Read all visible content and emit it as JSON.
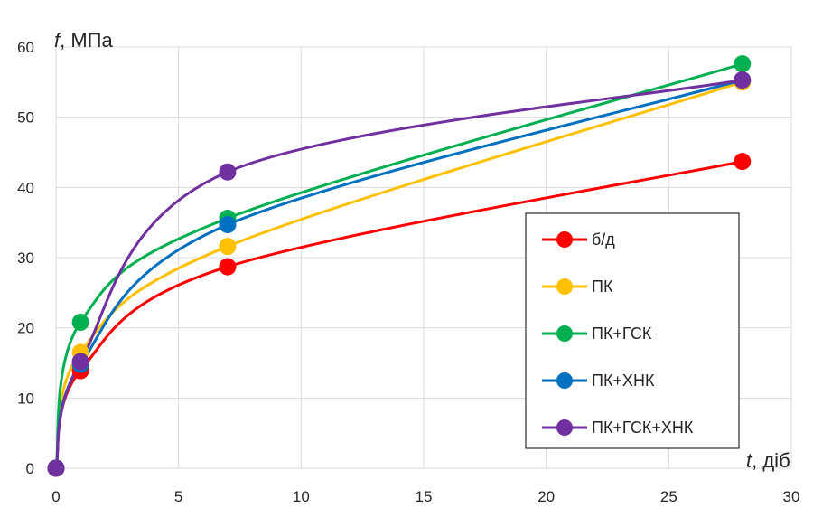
{
  "chart_data": {
    "type": "line",
    "x_axis_title": {
      "var": "t",
      "unit": ", діб"
    },
    "y_axis_title": {
      "var": "f",
      "unit": ", МПа"
    },
    "xlim": [
      0,
      30
    ],
    "ylim": [
      0,
      60
    ],
    "x_ticks": [
      0,
      5,
      10,
      15,
      20,
      25,
      30
    ],
    "y_ticks": [
      0,
      10,
      20,
      30,
      40,
      50,
      60
    ],
    "grid": true,
    "legend_position": "right",
    "series": [
      {
        "name": "б/д",
        "color": "#ff0000",
        "x": [
          0,
          1,
          7,
          28
        ],
        "y": [
          0,
          13.9,
          28.7,
          43.7
        ]
      },
      {
        "name": "ПК",
        "color": "#ffc000",
        "x": [
          0,
          1,
          7,
          28
        ],
        "y": [
          0,
          16.5,
          31.6,
          55.0
        ]
      },
      {
        "name": "ПК+ГСК",
        "color": "#00b050",
        "x": [
          0,
          1,
          7,
          28
        ],
        "y": [
          0,
          20.8,
          35.6,
          57.6
        ]
      },
      {
        "name": "ПК+ХНК",
        "color": "#0070c0",
        "x": [
          0,
          1,
          7,
          28
        ],
        "y": [
          0,
          14.8,
          34.7,
          55.3
        ]
      },
      {
        "name": "ПК+ГСК+ХНК",
        "color": "#7030a0",
        "x": [
          0,
          1,
          7,
          28
        ],
        "y": [
          0,
          15.2,
          42.2,
          55.3
        ]
      }
    ]
  }
}
